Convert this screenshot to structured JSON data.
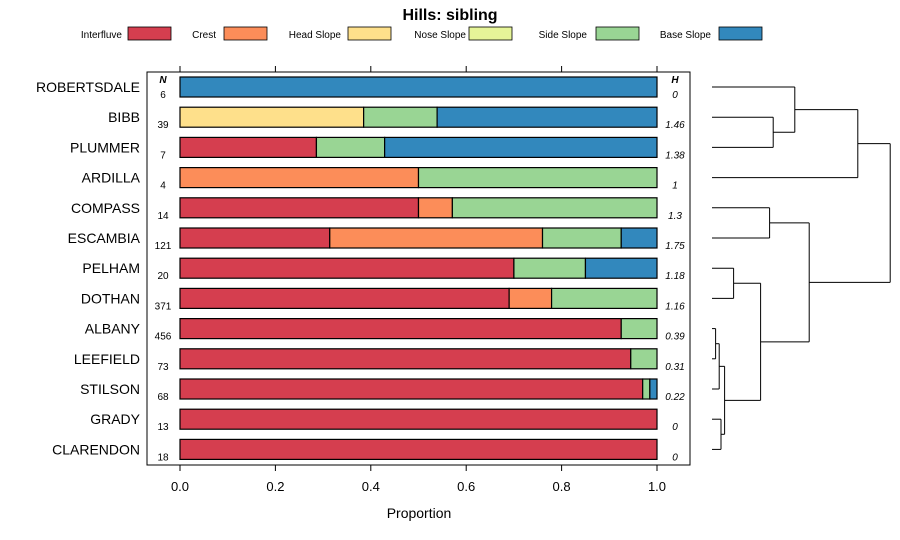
{
  "chart_data": {
    "type": "bar",
    "orientation": "horizontal",
    "stacked": true,
    "title": "Hills: sibling",
    "xlabel": "Proportion",
    "xlim": [
      0,
      1
    ],
    "xticks": [
      "0.0",
      "0.2",
      "0.4",
      "0.6",
      "0.8",
      "1.0"
    ],
    "n_header": "N",
    "h_header": "H",
    "legend_position": "top",
    "components": [
      {
        "name": "Interfluve",
        "color": "#d53e4f"
      },
      {
        "name": "Crest",
        "color": "#fc8d59"
      },
      {
        "name": "Head Slope",
        "color": "#fee08b"
      },
      {
        "name": "Nose Slope",
        "color": "#e6f598"
      },
      {
        "name": "Side Slope",
        "color": "#99d594"
      },
      {
        "name": "Base Slope",
        "color": "#3288bd"
      }
    ],
    "rows": [
      {
        "label": "ROBERTSDALE",
        "n": "6",
        "h": "0",
        "values": [
          0,
          0,
          0,
          0,
          0,
          1.0
        ]
      },
      {
        "label": "BIBB",
        "n": "39",
        "h": "1.46",
        "values": [
          0,
          0,
          0.385,
          0,
          0.154,
          0.461
        ]
      },
      {
        "label": "PLUMMER",
        "n": "7",
        "h": "1.38",
        "values": [
          0.286,
          0,
          0,
          0,
          0.143,
          0.571
        ]
      },
      {
        "label": "ARDILLA",
        "n": "4",
        "h": "1",
        "values": [
          0,
          0.5,
          0,
          0,
          0.5,
          0
        ]
      },
      {
        "label": "COMPASS",
        "n": "14",
        "h": "1.3",
        "values": [
          0.5,
          0.071,
          0,
          0,
          0.429,
          0
        ]
      },
      {
        "label": "ESCAMBIA",
        "n": "121",
        "h": "1.75",
        "values": [
          0.314,
          0.446,
          0,
          0,
          0.165,
          0.075
        ]
      },
      {
        "label": "PELHAM",
        "n": "20",
        "h": "1.18",
        "values": [
          0.7,
          0,
          0,
          0,
          0.15,
          0.15
        ]
      },
      {
        "label": "DOTHAN",
        "n": "371",
        "h": "1.16",
        "values": [
          0.69,
          0.089,
          0,
          0,
          0.221,
          0
        ]
      },
      {
        "label": "ALBANY",
        "n": "456",
        "h": "0.39",
        "values": [
          0.925,
          0,
          0,
          0,
          0.075,
          0
        ]
      },
      {
        "label": "LEEFIELD",
        "n": "73",
        "h": "0.31",
        "values": [
          0.945,
          0,
          0,
          0,
          0.055,
          0
        ]
      },
      {
        "label": "STILSON",
        "n": "68",
        "h": "0.22",
        "values": [
          0.97,
          0,
          0,
          0,
          0.015,
          0.015
        ]
      },
      {
        "label": "GRADY",
        "n": "13",
        "h": "0",
        "values": [
          1.0,
          0,
          0,
          0,
          0,
          0
        ]
      },
      {
        "label": "CLARENDON",
        "n": "18",
        "h": "0",
        "values": [
          1.0,
          0,
          0,
          0,
          0,
          0
        ]
      }
    ],
    "dendrogram": {
      "note": "merge structure of row clusters (leaf = row index)",
      "merges": [
        {
          "a": "ALBANY",
          "b": "LEEFIELD",
          "height": 0.02
        },
        {
          "a": "m0",
          "b": "STILSON",
          "height": 0.04
        },
        {
          "a": "GRADY",
          "b": "CLARENDON",
          "height": 0.05
        },
        {
          "a": "m1",
          "b": "m2",
          "height": 0.07
        },
        {
          "a": "PELHAM",
          "b": "DOTHAN",
          "height": 0.12
        },
        {
          "a": "m3",
          "b": "m4",
          "height": 0.27
        },
        {
          "a": "COMPASS",
          "b": "ESCAMBIA",
          "height": 0.32
        },
        {
          "a": "m5",
          "b": "m6",
          "height": 0.54
        },
        {
          "a": "BIBB",
          "b": "PLUMMER",
          "height": 0.34
        },
        {
          "a": "ROBERTSDALE",
          "b": "m8",
          "height": 0.46
        },
        {
          "a": "ARDILLA",
          "b": "m9",
          "height": 0.81
        },
        {
          "a": "m10",
          "b": "m7",
          "height": 0.99
        }
      ]
    }
  }
}
